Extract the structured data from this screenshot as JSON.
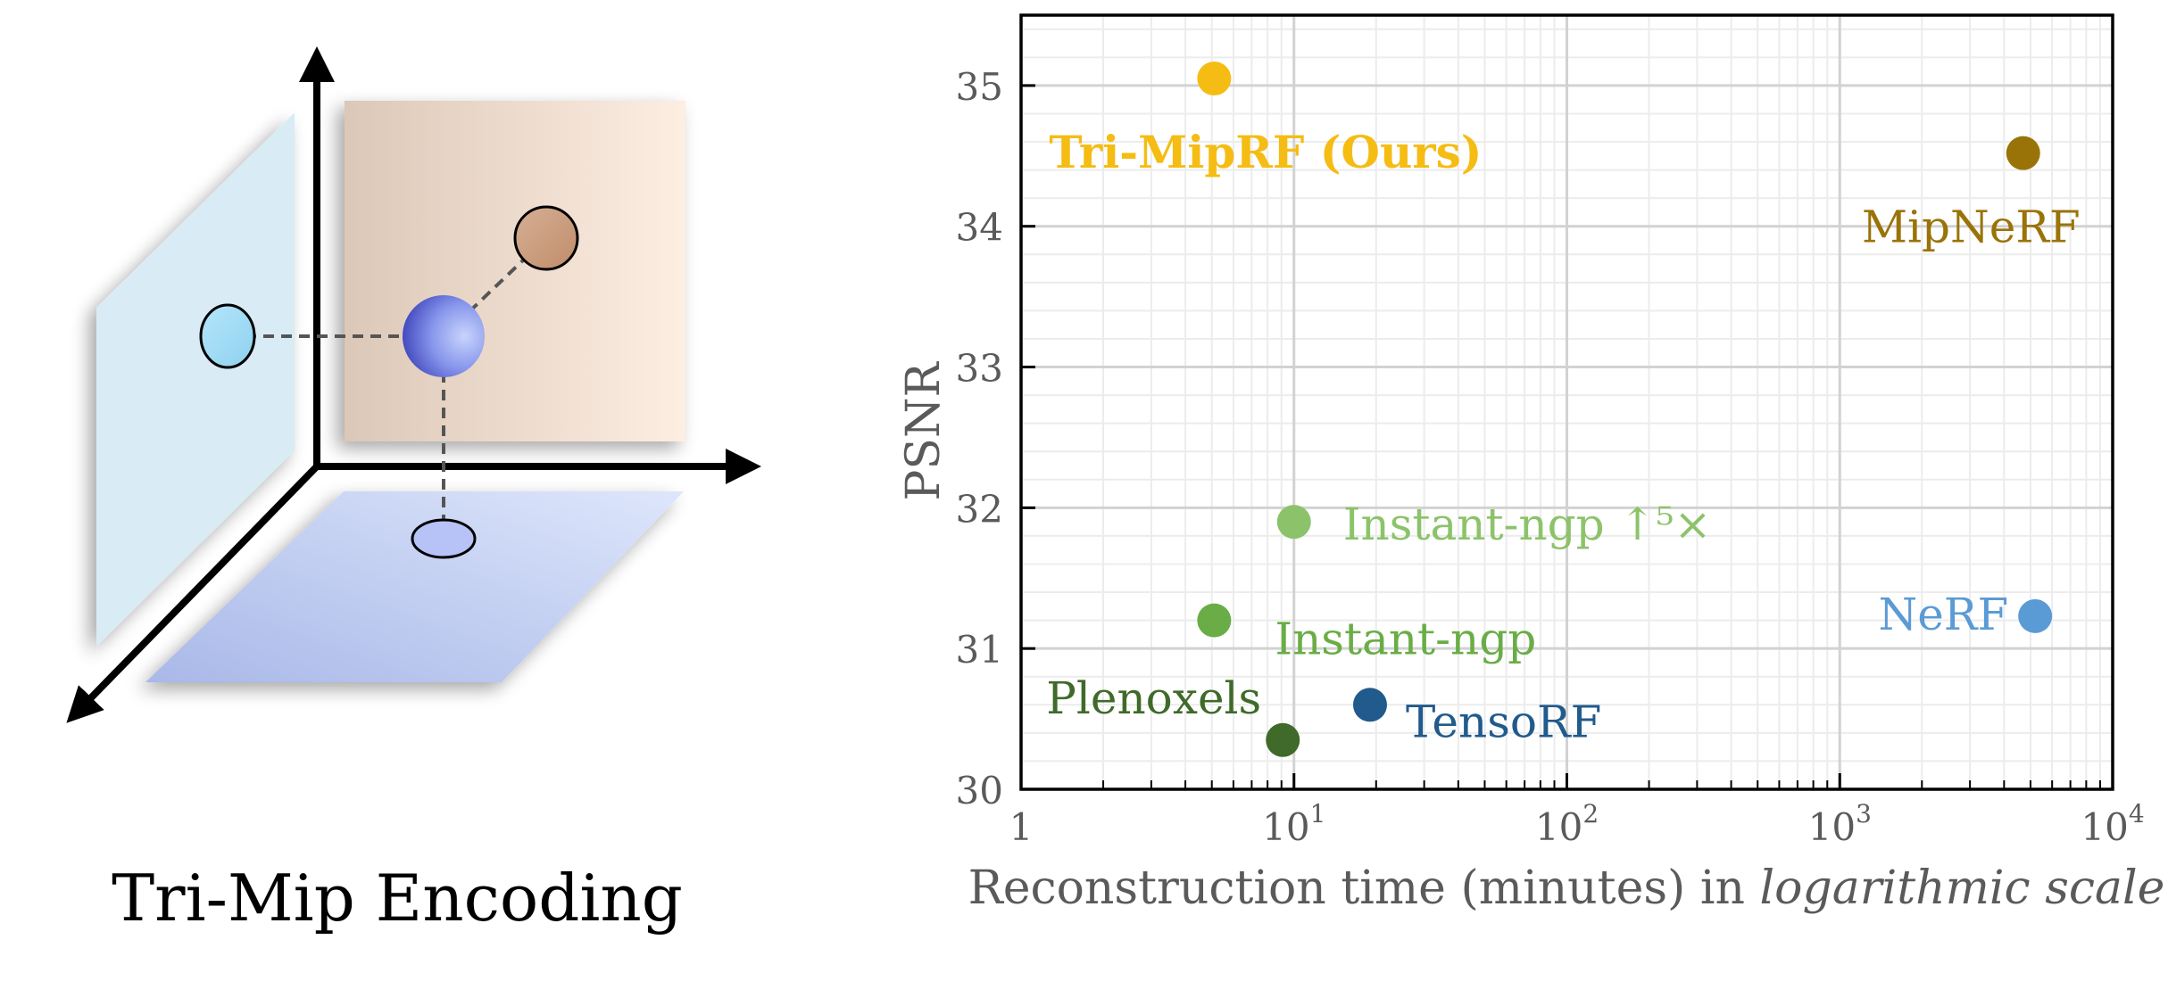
{
  "left_panel": {
    "caption": "Tri-Mip Encoding"
  },
  "chart_data": {
    "type": "scatter",
    "xlabel_regular": "Reconstruction time (minutes) in ",
    "xlabel_italic": "logarithmic scale",
    "ylabel": "PSNR",
    "xscale": "log",
    "xlim": [
      1,
      10000
    ],
    "ylim": [
      30,
      35.5
    ],
    "x_ticks": [
      {
        "value": 1,
        "base": "1",
        "exp": ""
      },
      {
        "value": 10,
        "base": "10",
        "exp": "1"
      },
      {
        "value": 100,
        "base": "10",
        "exp": "2"
      },
      {
        "value": 1000,
        "base": "10",
        "exp": "3"
      },
      {
        "value": 10000,
        "base": "10",
        "exp": "4"
      }
    ],
    "y_ticks": [
      30,
      31,
      32,
      33,
      34,
      35
    ],
    "grid": true,
    "points": [
      {
        "label": "Tri-MipRF (Ours)",
        "x": 5.1,
        "y": 35.05,
        "color": "#f5bc13",
        "bold": true
      },
      {
        "label": "MipNeRF",
        "x": 4700,
        "y": 34.52,
        "color": "#9a7308",
        "bold": false
      },
      {
        "label": "Instant-ngp ↑⁵×",
        "x": 10,
        "y": 31.9,
        "color": "#8cc36a",
        "bold": false
      },
      {
        "label": "Instant-ngp",
        "x": 5.1,
        "y": 31.2,
        "color": "#6aad46",
        "bold": false
      },
      {
        "label": "NeRF",
        "x": 5200,
        "y": 31.23,
        "color": "#5b9bd5",
        "bold": false
      },
      {
        "label": "Plenoxels",
        "x": 9.1,
        "y": 30.35,
        "color": "#3f6a29",
        "bold": false
      },
      {
        "label": "TensoRF",
        "x": 19,
        "y": 30.6,
        "color": "#215a8c",
        "bold": false
      }
    ]
  }
}
